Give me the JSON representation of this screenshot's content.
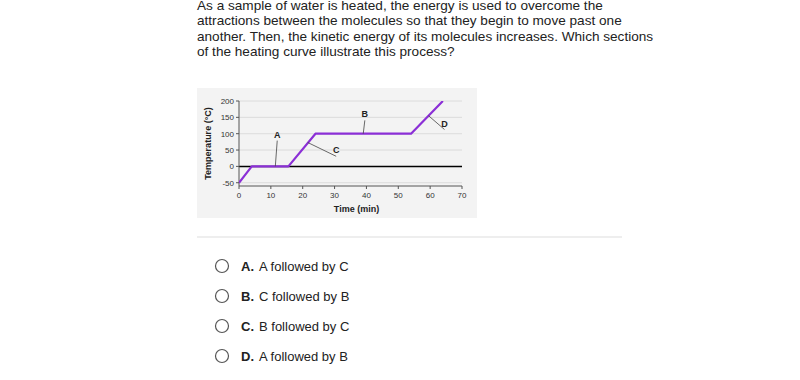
{
  "question_lines": [
    "As a sample of water is heated, the energy is used to overcome the",
    "attractions between the molecules so that they begin to move past one",
    "another. Then, the kinetic energy of its molecules increases. Which sections",
    "of the heating curve illustrate this process?"
  ],
  "chart_data": {
    "type": "line",
    "xlabel": "Time (min)",
    "ylabel": "Temperature (°C)",
    "x": [
      0,
      4,
      15.5,
      24,
      54,
      64
    ],
    "series": [
      {
        "values": [
          -50,
          0,
          0,
          100,
          100,
          200
        ],
        "color": "#8b2fd6"
      }
    ],
    "xlim": [
      0,
      70
    ],
    "ylim": [
      -60,
      200
    ],
    "xticks": [
      0,
      10,
      20,
      30,
      40,
      50,
      60,
      70
    ],
    "yticks": [
      -50,
      0,
      50,
      100,
      150,
      200
    ],
    "grid": true,
    "annotations": [
      {
        "text": "A",
        "x": 11.4,
        "y": 0,
        "text_x": 12,
        "text_y": 88
      },
      {
        "text": "B",
        "x": 39,
        "y": 100,
        "text_x": 39.5,
        "text_y": 150
      },
      {
        "text": "C",
        "x": 21.6,
        "y": 73,
        "text_x": 30.5,
        "text_y": 40
      },
      {
        "text": "D",
        "x": 59.5,
        "y": 155,
        "text_x": 64.5,
        "text_y": 122
      }
    ]
  },
  "options": [
    {
      "letter": "A.",
      "text": "A followed by C"
    },
    {
      "letter": "B.",
      "text": "C followed by B"
    },
    {
      "letter": "C.",
      "text": "B followed by C"
    },
    {
      "letter": "D.",
      "text": "A followed by B"
    }
  ]
}
